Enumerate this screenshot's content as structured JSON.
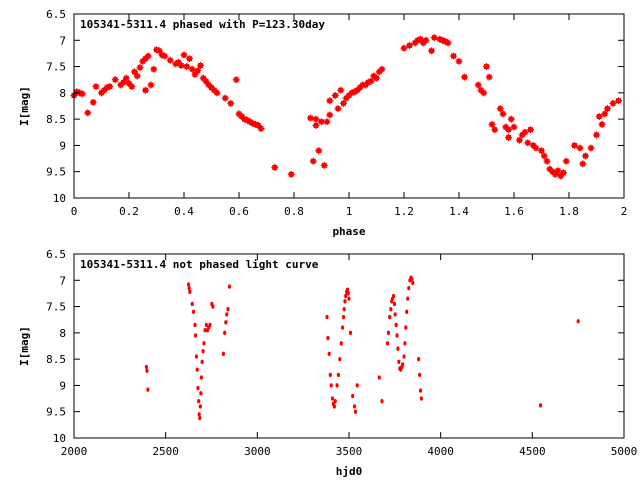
{
  "chart_data": [
    {
      "type": "scatter",
      "title": "105341-5311.4 phased with P=123.30day",
      "xlabel": "phase",
      "ylabel": "I[mag]",
      "xlim": [
        0,
        2
      ],
      "ylim": [
        10,
        6.5
      ],
      "y_inverted": true,
      "grid": false,
      "marker": "plus-square",
      "color": "#ff0000",
      "x_ticks": [
        "0",
        "0.2",
        "0.4",
        "0.6",
        "0.8",
        "1",
        "1.2",
        "1.4",
        "1.6",
        "1.8",
        "2"
      ],
      "x_tick_values": [
        0,
        0.2,
        0.4,
        0.6,
        0.8,
        1,
        1.2,
        1.4,
        1.6,
        1.8,
        2
      ],
      "y_ticks": [
        "6.5",
        "7",
        "7.5",
        "8",
        "8.5",
        "9",
        "9.5",
        "10"
      ],
      "y_tick_values": [
        6.5,
        7,
        7.5,
        8,
        8.5,
        9,
        9.5,
        10
      ],
      "points": [
        [
          0.0,
          8.05
        ],
        [
          0.01,
          7.98
        ],
        [
          0.02,
          8.0
        ],
        [
          0.03,
          8.02
        ],
        [
          0.05,
          8.38
        ],
        [
          0.07,
          8.18
        ],
        [
          0.08,
          7.88
        ],
        [
          0.1,
          8.0
        ],
        [
          0.11,
          7.95
        ],
        [
          0.12,
          7.9
        ],
        [
          0.13,
          7.88
        ],
        [
          0.15,
          7.75
        ],
        [
          0.17,
          7.85
        ],
        [
          0.18,
          7.8
        ],
        [
          0.19,
          7.72
        ],
        [
          0.2,
          7.82
        ],
        [
          0.21,
          7.88
        ],
        [
          0.22,
          7.6
        ],
        [
          0.23,
          7.68
        ],
        [
          0.24,
          7.52
        ],
        [
          0.25,
          7.4
        ],
        [
          0.26,
          7.35
        ],
        [
          0.26,
          7.95
        ],
        [
          0.27,
          7.3
        ],
        [
          0.28,
          7.85
        ],
        [
          0.29,
          7.55
        ],
        [
          0.3,
          7.18
        ],
        [
          0.31,
          7.2
        ],
        [
          0.32,
          7.28
        ],
        [
          0.33,
          7.3
        ],
        [
          0.35,
          7.38
        ],
        [
          0.37,
          7.45
        ],
        [
          0.38,
          7.42
        ],
        [
          0.39,
          7.48
        ],
        [
          0.4,
          7.28
        ],
        [
          0.41,
          7.5
        ],
        [
          0.42,
          7.35
        ],
        [
          0.43,
          7.55
        ],
        [
          0.44,
          7.65
        ],
        [
          0.45,
          7.58
        ],
        [
          0.46,
          7.48
        ],
        [
          0.47,
          7.72
        ],
        [
          0.48,
          7.78
        ],
        [
          0.49,
          7.85
        ],
        [
          0.5,
          7.9
        ],
        [
          0.51,
          7.95
        ],
        [
          0.52,
          8.0
        ],
        [
          0.55,
          8.1
        ],
        [
          0.57,
          8.2
        ],
        [
          0.59,
          7.75
        ],
        [
          0.6,
          8.4
        ],
        [
          0.61,
          8.45
        ],
        [
          0.62,
          8.5
        ],
        [
          0.63,
          8.52
        ],
        [
          0.64,
          8.55
        ],
        [
          0.65,
          8.58
        ],
        [
          0.66,
          8.6
        ],
        [
          0.67,
          8.62
        ],
        [
          0.68,
          8.68
        ],
        [
          0.73,
          9.42
        ],
        [
          0.79,
          9.55
        ],
        [
          0.86,
          8.48
        ],
        [
          0.87,
          9.3
        ],
        [
          0.88,
          8.5
        ],
        [
          0.88,
          8.62
        ],
        [
          0.89,
          9.1
        ],
        [
          0.9,
          8.55
        ],
        [
          0.91,
          9.38
        ],
        [
          0.92,
          8.55
        ],
        [
          0.93,
          8.42
        ],
        [
          0.93,
          8.15
        ],
        [
          0.95,
          8.05
        ],
        [
          0.96,
          8.3
        ],
        [
          0.97,
          7.95
        ],
        [
          0.98,
          8.2
        ],
        [
          0.99,
          8.1
        ],
        [
          1.0,
          8.05
        ],
        [
          1.01,
          8.0
        ],
        [
          1.02,
          7.98
        ],
        [
          1.03,
          7.95
        ],
        [
          1.04,
          7.9
        ],
        [
          1.05,
          7.85
        ],
        [
          1.06,
          7.85
        ],
        [
          1.07,
          7.8
        ],
        [
          1.08,
          7.78
        ],
        [
          1.09,
          7.68
        ],
        [
          1.1,
          7.72
        ],
        [
          1.11,
          7.6
        ],
        [
          1.12,
          7.55
        ],
        [
          1.2,
          7.15
        ],
        [
          1.22,
          7.1
        ],
        [
          1.24,
          7.05
        ],
        [
          1.25,
          7.0
        ],
        [
          1.26,
          6.98
        ],
        [
          1.27,
          7.05
        ],
        [
          1.28,
          7.0
        ],
        [
          1.3,
          7.2
        ],
        [
          1.31,
          6.95
        ],
        [
          1.33,
          6.98
        ],
        [
          1.34,
          7.0
        ],
        [
          1.35,
          7.02
        ],
        [
          1.36,
          7.05
        ],
        [
          1.38,
          7.3
        ],
        [
          1.4,
          7.4
        ],
        [
          1.42,
          7.7
        ],
        [
          1.47,
          7.85
        ],
        [
          1.48,
          7.95
        ],
        [
          1.49,
          8.0
        ],
        [
          1.5,
          7.5
        ],
        [
          1.51,
          7.7
        ],
        [
          1.52,
          8.6
        ],
        [
          1.53,
          8.7
        ],
        [
          1.55,
          8.3
        ],
        [
          1.56,
          8.4
        ],
        [
          1.57,
          8.65
        ],
        [
          1.58,
          8.7
        ],
        [
          1.58,
          8.85
        ],
        [
          1.59,
          8.5
        ],
        [
          1.6,
          8.65
        ],
        [
          1.62,
          8.9
        ],
        [
          1.63,
          8.8
        ],
        [
          1.64,
          8.75
        ],
        [
          1.65,
          8.95
        ],
        [
          1.66,
          8.7
        ],
        [
          1.67,
          9.0
        ],
        [
          1.68,
          9.05
        ],
        [
          1.7,
          9.1
        ],
        [
          1.71,
          9.2
        ],
        [
          1.72,
          9.3
        ],
        [
          1.73,
          9.45
        ],
        [
          1.74,
          9.5
        ],
        [
          1.75,
          9.55
        ],
        [
          1.76,
          9.48
        ],
        [
          1.77,
          9.58
        ],
        [
          1.78,
          9.52
        ],
        [
          1.79,
          9.3
        ],
        [
          1.82,
          9.0
        ],
        [
          1.84,
          9.05
        ],
        [
          1.85,
          9.35
        ],
        [
          1.86,
          9.2
        ],
        [
          1.88,
          9.05
        ],
        [
          1.9,
          8.8
        ],
        [
          1.91,
          8.45
        ],
        [
          1.92,
          8.6
        ],
        [
          1.93,
          8.4
        ],
        [
          1.94,
          8.3
        ],
        [
          1.96,
          8.2
        ],
        [
          1.98,
          8.15
        ]
      ]
    },
    {
      "type": "scatter",
      "title": "105341-5311.4 not phased light curve",
      "xlabel": "hjd0",
      "ylabel": "I[mag]",
      "xlim": [
        2000,
        5000
      ],
      "ylim": [
        10,
        6.5
      ],
      "y_inverted": true,
      "grid": false,
      "marker": "small-dot",
      "color": "#ff0000",
      "x_ticks": [
        "2000",
        "2500",
        "3000",
        "3500",
        "4000",
        "4500",
        "5000"
      ],
      "x_tick_values": [
        2000,
        2500,
        3000,
        3500,
        4000,
        4500,
        5000
      ],
      "y_ticks": [
        "6.5",
        "7",
        "7.5",
        "8",
        "8.5",
        "9",
        "9.5",
        "10"
      ],
      "y_tick_values": [
        6.5,
        7,
        7.5,
        8,
        8.5,
        9,
        9.5,
        10
      ],
      "points": [
        [
          2395,
          8.65
        ],
        [
          2398,
          8.72
        ],
        [
          2403,
          9.08
        ],
        [
          2625,
          7.08
        ],
        [
          2628,
          7.15
        ],
        [
          2632,
          7.22
        ],
        [
          2645,
          7.45
        ],
        [
          2652,
          7.6
        ],
        [
          2660,
          7.85
        ],
        [
          2663,
          8.05
        ],
        [
          2668,
          8.45
        ],
        [
          2672,
          8.7
        ],
        [
          2676,
          9.05
        ],
        [
          2680,
          9.3
        ],
        [
          2683,
          9.55
        ],
        [
          2686,
          9.62
        ],
        [
          2689,
          9.4
        ],
        [
          2692,
          9.15
        ],
        [
          2695,
          8.85
        ],
        [
          2699,
          8.55
        ],
        [
          2704,
          8.35
        ],
        [
          2709,
          8.2
        ],
        [
          2715,
          7.95
        ],
        [
          2722,
          7.85
        ],
        [
          2728,
          7.95
        ],
        [
          2735,
          7.9
        ],
        [
          2742,
          7.85
        ],
        [
          2752,
          7.45
        ],
        [
          2758,
          7.5
        ],
        [
          2815,
          8.4
        ],
        [
          2822,
          8.0
        ],
        [
          2828,
          7.8
        ],
        [
          2833,
          7.65
        ],
        [
          2840,
          7.55
        ],
        [
          2848,
          7.12
        ],
        [
          3380,
          7.7
        ],
        [
          3385,
          8.1
        ],
        [
          3392,
          8.4
        ],
        [
          3398,
          8.8
        ],
        [
          3403,
          9.0
        ],
        [
          3410,
          9.25
        ],
        [
          3415,
          9.35
        ],
        [
          3420,
          9.4
        ],
        [
          3425,
          9.3
        ],
        [
          3435,
          9.0
        ],
        [
          3442,
          8.8
        ],
        [
          3450,
          8.5
        ],
        [
          3458,
          8.2
        ],
        [
          3465,
          7.9
        ],
        [
          3470,
          7.7
        ],
        [
          3474,
          7.55
        ],
        [
          3478,
          7.4
        ],
        [
          3482,
          7.3
        ],
        [
          3487,
          7.22
        ],
        [
          3492,
          7.18
        ],
        [
          3496,
          7.25
        ],
        [
          3500,
          7.35
        ],
        [
          3508,
          8.0
        ],
        [
          3520,
          9.2
        ],
        [
          3530,
          9.4
        ],
        [
          3535,
          9.5
        ],
        [
          3545,
          9.0
        ],
        [
          3665,
          8.85
        ],
        [
          3680,
          9.3
        ],
        [
          3710,
          8.2
        ],
        [
          3715,
          8.0
        ],
        [
          3722,
          7.7
        ],
        [
          3728,
          7.55
        ],
        [
          3733,
          7.4
        ],
        [
          3738,
          7.35
        ],
        [
          3743,
          7.3
        ],
        [
          3748,
          7.45
        ],
        [
          3752,
          7.65
        ],
        [
          3757,
          7.85
        ],
        [
          3762,
          8.05
        ],
        [
          3767,
          8.3
        ],
        [
          3772,
          8.55
        ],
        [
          3777,
          8.68
        ],
        [
          3782,
          8.7
        ],
        [
          3788,
          8.65
        ],
        [
          3793,
          8.6
        ],
        [
          3800,
          8.45
        ],
        [
          3805,
          8.2
        ],
        [
          3810,
          7.9
        ],
        [
          3815,
          7.6
        ],
        [
          3820,
          7.35
        ],
        [
          3826,
          7.15
        ],
        [
          3832,
          7.0
        ],
        [
          3838,
          6.95
        ],
        [
          3843,
          6.98
        ],
        [
          3848,
          7.05
        ],
        [
          3880,
          8.5
        ],
        [
          3885,
          8.8
        ],
        [
          3890,
          9.1
        ],
        [
          3895,
          9.25
        ],
        [
          4545,
          9.38
        ],
        [
          4750,
          7.78
        ]
      ]
    }
  ]
}
